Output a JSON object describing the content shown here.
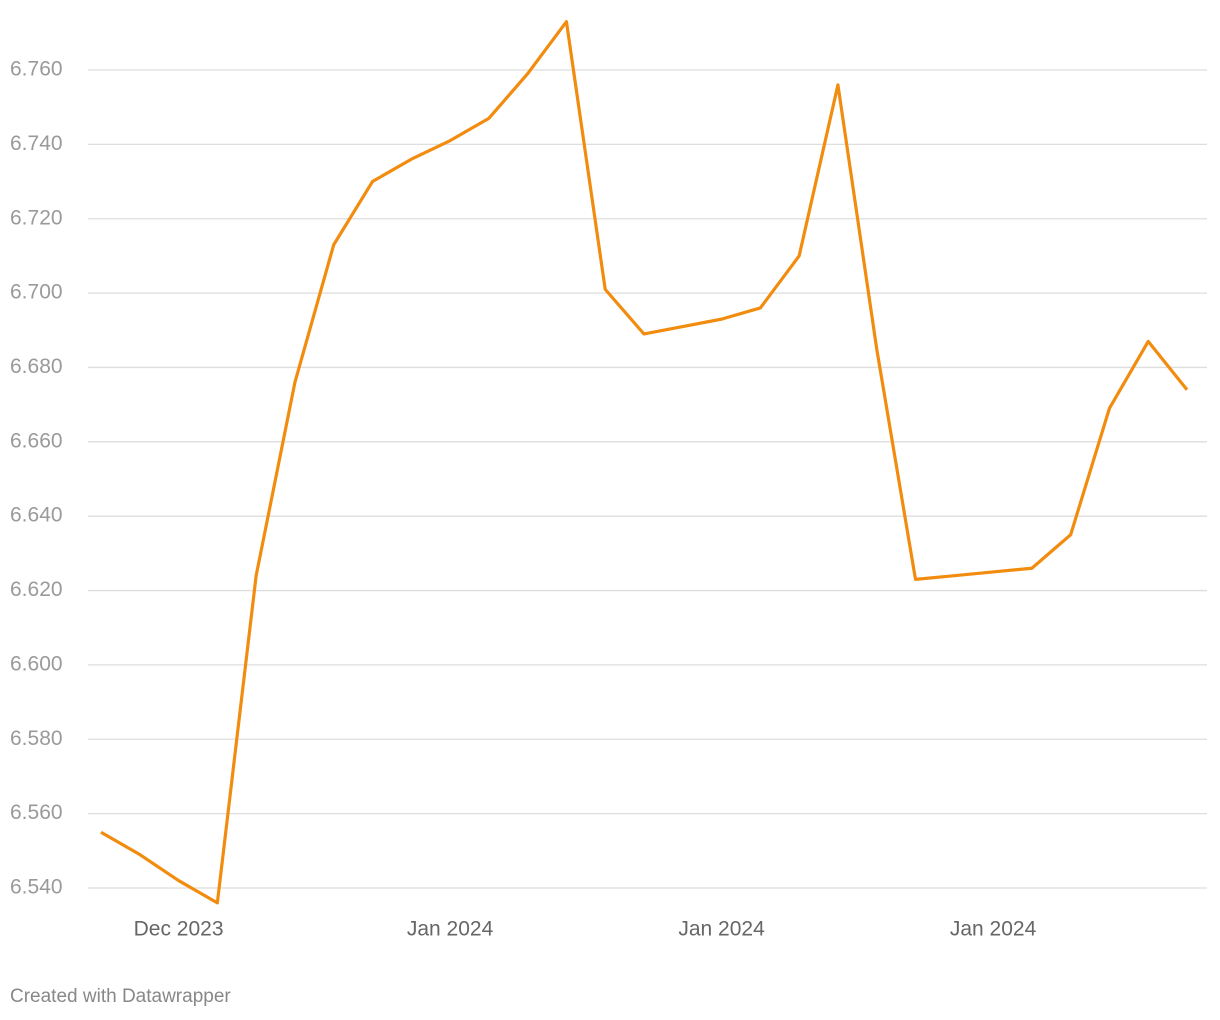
{
  "chart_data": {
    "type": "line",
    "categories": [
      null,
      null,
      "Dec 2023",
      null,
      null,
      null,
      null,
      null,
      null,
      "Jan 2024",
      null,
      null,
      null,
      null,
      null,
      null,
      "Jan 2024",
      null,
      null,
      null,
      null,
      null,
      null,
      "Jan 2024",
      null,
      null,
      null,
      null,
      null
    ],
    "series": [
      {
        "color": "#f28c0f",
        "values": [
          6.555,
          6.549,
          6.542,
          6.536,
          6.624,
          6.676,
          6.713,
          6.73,
          6.736,
          6.741,
          6.747,
          6.759,
          6.773,
          6.701,
          6.689,
          6.691,
          6.693,
          6.696,
          6.71,
          6.756,
          6.685,
          6.623,
          6.624,
          6.625,
          6.626,
          6.635,
          6.669,
          6.687,
          6.674
        ]
      }
    ],
    "ylim": [
      6.54,
      6.76
    ],
    "yticks": [
      {
        "value": 6.54,
        "label": "6.540"
      },
      {
        "value": 6.56,
        "label": "6.560"
      },
      {
        "value": 6.58,
        "label": "6.580"
      },
      {
        "value": 6.6,
        "label": "6.600"
      },
      {
        "value": 6.62,
        "label": "6.620"
      },
      {
        "value": 6.64,
        "label": "6.640"
      },
      {
        "value": 6.66,
        "label": "6.660"
      },
      {
        "value": 6.68,
        "label": "6.680"
      },
      {
        "value": 6.7,
        "label": "6.700"
      },
      {
        "value": 6.72,
        "label": "6.720"
      },
      {
        "value": 6.74,
        "label": "6.740"
      },
      {
        "value": 6.76,
        "label": "6.760"
      }
    ],
    "grid": true,
    "footer": "Created with Datawrapper"
  }
}
